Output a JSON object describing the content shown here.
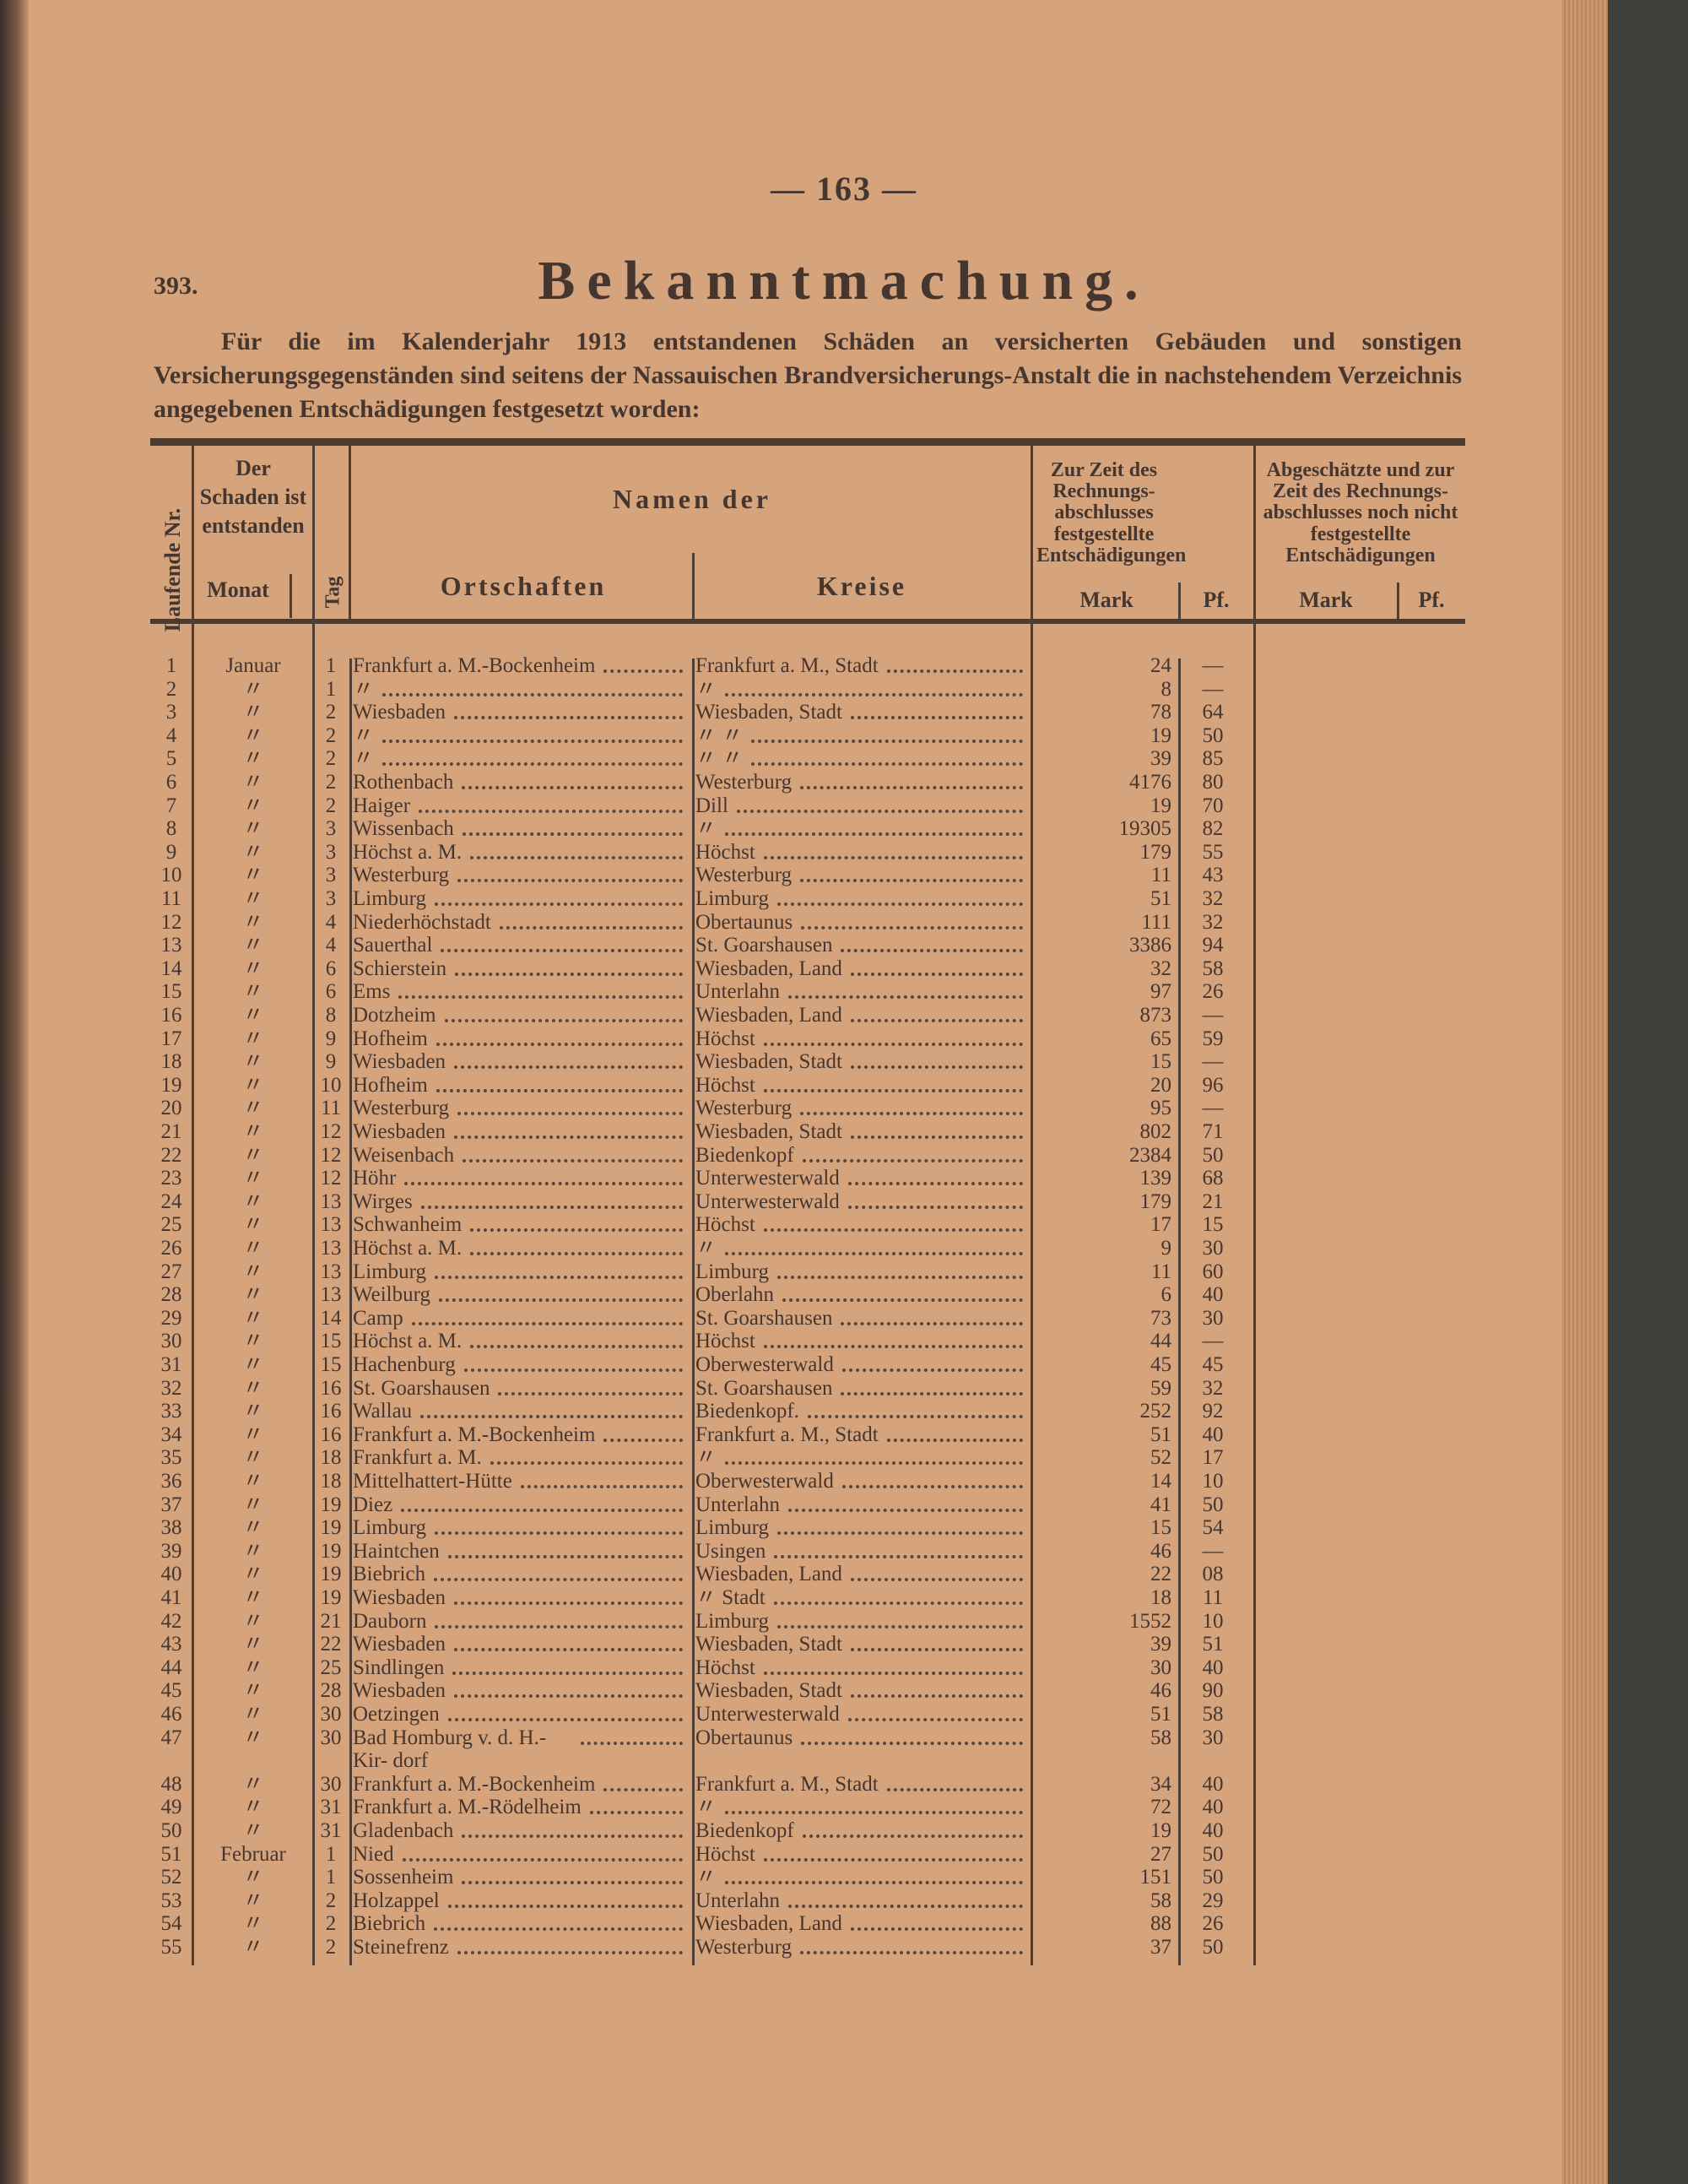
{
  "page_number": "— 163 —",
  "item_number": "393.",
  "title": "Bekanntmachung.",
  "intro": "Für die im Kalenderjahr 1913 entstandenen Schäden an versicherten Gebäuden und sonstigen Versicherungsgegenständen sind seitens der Nassauischen Brandversicherungs-Anstalt die in nachstehendem Verzeichnis angegebenen Entschädigungen festgesetzt worden:",
  "headers": {
    "nr": "Laufende Nr.",
    "schaden": "Der Schaden ist entstanden",
    "monat": "Monat",
    "tag": "Tag",
    "namen": "Namen der",
    "ortschaften": "Ortschaften",
    "kreise": "Kreise",
    "festgestellt": "Zur Zeit des Rechnungs-abschlusses festgestellte Entschädigungen",
    "nicht_festgestellt": "Abgeschätzte und zur Zeit des Rechnungs-abschlusses noch nicht festgestellte Entschädigungen",
    "mark": "Mark",
    "pf": "Pf."
  },
  "rows": [
    {
      "nr": "1",
      "monat": "Januar",
      "tag": "1",
      "ort": "Frankfurt a. M.-Bockenheim",
      "kreis": "Frankfurt a. M., Stadt",
      "mark": "24",
      "pf": "—"
    },
    {
      "nr": "2",
      "monat": "〃",
      "tag": "1",
      "ort": "〃",
      "kreis": "〃",
      "mark": "8",
      "pf": "—"
    },
    {
      "nr": "3",
      "monat": "〃",
      "tag": "2",
      "ort": "Wiesbaden",
      "kreis": "Wiesbaden, Stadt",
      "mark": "78",
      "pf": "64"
    },
    {
      "nr": "4",
      "monat": "〃",
      "tag": "2",
      "ort": "〃",
      "kreis": "〃   〃",
      "mark": "19",
      "pf": "50"
    },
    {
      "nr": "5",
      "monat": "〃",
      "tag": "2",
      "ort": "〃",
      "kreis": "〃   〃",
      "mark": "39",
      "pf": "85"
    },
    {
      "nr": "6",
      "monat": "〃",
      "tag": "2",
      "ort": "Rothenbach",
      "kreis": "Westerburg",
      "mark": "4176",
      "pf": "80"
    },
    {
      "nr": "7",
      "monat": "〃",
      "tag": "2",
      "ort": "Haiger",
      "kreis": "Dill",
      "mark": "19",
      "pf": "70"
    },
    {
      "nr": "8",
      "monat": "〃",
      "tag": "3",
      "ort": "Wissenbach",
      "kreis": "〃",
      "mark": "19305",
      "pf": "82"
    },
    {
      "nr": "9",
      "monat": "〃",
      "tag": "3",
      "ort": "Höchst a. M.",
      "kreis": "Höchst",
      "mark": "179",
      "pf": "55"
    },
    {
      "nr": "10",
      "monat": "〃",
      "tag": "3",
      "ort": "Westerburg",
      "kreis": "Westerburg",
      "mark": "11",
      "pf": "43"
    },
    {
      "nr": "11",
      "monat": "〃",
      "tag": "3",
      "ort": "Limburg",
      "kreis": "Limburg",
      "mark": "51",
      "pf": "32"
    },
    {
      "nr": "12",
      "monat": "〃",
      "tag": "4",
      "ort": "Niederhöchstadt",
      "kreis": "Obertaunus",
      "mark": "111",
      "pf": "32"
    },
    {
      "nr": "13",
      "monat": "〃",
      "tag": "4",
      "ort": "Sauerthal",
      "kreis": "St. Goarshausen",
      "mark": "3386",
      "pf": "94"
    },
    {
      "nr": "14",
      "monat": "〃",
      "tag": "6",
      "ort": "Schierstein",
      "kreis": "Wiesbaden, Land",
      "mark": "32",
      "pf": "58"
    },
    {
      "nr": "15",
      "monat": "〃",
      "tag": "6",
      "ort": "Ems",
      "kreis": "Unterlahn",
      "mark": "97",
      "pf": "26"
    },
    {
      "nr": "16",
      "monat": "〃",
      "tag": "8",
      "ort": "Dotzheim",
      "kreis": "Wiesbaden, Land",
      "mark": "873",
      "pf": "—"
    },
    {
      "nr": "17",
      "monat": "〃",
      "tag": "9",
      "ort": "Hofheim",
      "kreis": "Höchst",
      "mark": "65",
      "pf": "59"
    },
    {
      "nr": "18",
      "monat": "〃",
      "tag": "9",
      "ort": "Wiesbaden",
      "kreis": "Wiesbaden, Stadt",
      "mark": "15",
      "pf": "—"
    },
    {
      "nr": "19",
      "monat": "〃",
      "tag": "10",
      "ort": "Hofheim",
      "kreis": "Höchst",
      "mark": "20",
      "pf": "96"
    },
    {
      "nr": "20",
      "monat": "〃",
      "tag": "11",
      "ort": "Westerburg",
      "kreis": "Westerburg",
      "mark": "95",
      "pf": "—"
    },
    {
      "nr": "21",
      "monat": "〃",
      "tag": "12",
      "ort": "Wiesbaden",
      "kreis": "Wiesbaden, Stadt",
      "mark": "802",
      "pf": "71"
    },
    {
      "nr": "22",
      "monat": "〃",
      "tag": "12",
      "ort": "Weisenbach",
      "kreis": "Biedenkopf",
      "mark": "2384",
      "pf": "50"
    },
    {
      "nr": "23",
      "monat": "〃",
      "tag": "12",
      "ort": "Höhr",
      "kreis": "Unterwesterwald",
      "mark": "139",
      "pf": "68"
    },
    {
      "nr": "24",
      "monat": "〃",
      "tag": "13",
      "ort": "Wirges",
      "kreis": "Unterwesterwald",
      "mark": "179",
      "pf": "21"
    },
    {
      "nr": "25",
      "monat": "〃",
      "tag": "13",
      "ort": "Schwanheim",
      "kreis": "Höchst",
      "mark": "17",
      "pf": "15"
    },
    {
      "nr": "26",
      "monat": "〃",
      "tag": "13",
      "ort": "Höchst a. M.",
      "kreis": "〃",
      "mark": "9",
      "pf": "30"
    },
    {
      "nr": "27",
      "monat": "〃",
      "tag": "13",
      "ort": "Limburg",
      "kreis": "Limburg",
      "mark": "11",
      "pf": "60"
    },
    {
      "nr": "28",
      "monat": "〃",
      "tag": "13",
      "ort": "Weilburg",
      "kreis": "Oberlahn",
      "mark": "6",
      "pf": "40"
    },
    {
      "nr": "29",
      "monat": "〃",
      "tag": "14",
      "ort": "Camp",
      "kreis": "St. Goarshausen",
      "mark": "73",
      "pf": "30"
    },
    {
      "nr": "30",
      "monat": "〃",
      "tag": "15",
      "ort": "Höchst a. M.",
      "kreis": "Höchst",
      "mark": "44",
      "pf": "—"
    },
    {
      "nr": "31",
      "monat": "〃",
      "tag": "15",
      "ort": "Hachenburg",
      "kreis": "Oberwesterwald",
      "mark": "45",
      "pf": "45"
    },
    {
      "nr": "32",
      "monat": "〃",
      "tag": "16",
      "ort": "St. Goarshausen",
      "kreis": "St. Goarshausen",
      "mark": "59",
      "pf": "32"
    },
    {
      "nr": "33",
      "monat": "〃",
      "tag": "16",
      "ort": "Wallau",
      "kreis": "Biedenkopf.",
      "mark": "252",
      "pf": "92"
    },
    {
      "nr": "34",
      "monat": "〃",
      "tag": "16",
      "ort": "Frankfurt a. M.-Bockenheim",
      "kreis": "Frankfurt a. M., Stadt",
      "mark": "51",
      "pf": "40"
    },
    {
      "nr": "35",
      "monat": "〃",
      "tag": "18",
      "ort": "Frankfurt a. M.",
      "kreis": "〃",
      "mark": "52",
      "pf": "17"
    },
    {
      "nr": "36",
      "monat": "〃",
      "tag": "18",
      "ort": "Mittelhattert-Hütte",
      "kreis": "Oberwesterwald",
      "mark": "14",
      "pf": "10"
    },
    {
      "nr": "37",
      "monat": "〃",
      "tag": "19",
      "ort": "Diez",
      "kreis": "Unterlahn",
      "mark": "41",
      "pf": "50"
    },
    {
      "nr": "38",
      "monat": "〃",
      "tag": "19",
      "ort": "Limburg",
      "kreis": "Limburg",
      "mark": "15",
      "pf": "54"
    },
    {
      "nr": "39",
      "monat": "〃",
      "tag": "19",
      "ort": "Haintchen",
      "kreis": "Usingen",
      "mark": "46",
      "pf": "—"
    },
    {
      "nr": "40",
      "monat": "〃",
      "tag": "19",
      "ort": "Biebrich",
      "kreis": "Wiesbaden, Land",
      "mark": "22",
      "pf": "08"
    },
    {
      "nr": "41",
      "monat": "〃",
      "tag": "19",
      "ort": "Wiesbaden",
      "kreis": "〃   Stadt",
      "mark": "18",
      "pf": "11"
    },
    {
      "nr": "42",
      "monat": "〃",
      "tag": "21",
      "ort": "Dauborn",
      "kreis": "Limburg",
      "mark": "1552",
      "pf": "10"
    },
    {
      "nr": "43",
      "monat": "〃",
      "tag": "22",
      "ort": "Wiesbaden",
      "kreis": "Wiesbaden, Stadt",
      "mark": "39",
      "pf": "51"
    },
    {
      "nr": "44",
      "monat": "〃",
      "tag": "25",
      "ort": "Sindlingen",
      "kreis": "Höchst",
      "mark": "30",
      "pf": "40"
    },
    {
      "nr": "45",
      "monat": "〃",
      "tag": "28",
      "ort": "Wiesbaden",
      "kreis": "Wiesbaden, Stadt",
      "mark": "46",
      "pf": "90"
    },
    {
      "nr": "46",
      "monat": "〃",
      "tag": "30",
      "ort": "Oetzingen",
      "kreis": "Unterwesterwald",
      "mark": "51",
      "pf": "58"
    },
    {
      "nr": "47",
      "monat": "〃",
      "tag": "30",
      "ort": "Bad Homburg v. d. H.-Kir- dorf",
      "kreis": "Obertaunus",
      "mark": "58",
      "pf": "30"
    },
    {
      "nr": "48",
      "monat": "〃",
      "tag": "30",
      "ort": "Frankfurt a. M.-Bockenheim",
      "kreis": "Frankfurt a. M., Stadt",
      "mark": "34",
      "pf": "40"
    },
    {
      "nr": "49",
      "monat": "〃",
      "tag": "31",
      "ort": "Frankfurt a. M.-Rödelheim",
      "kreis": "〃",
      "mark": "72",
      "pf": "40"
    },
    {
      "nr": "50",
      "monat": "〃",
      "tag": "31",
      "ort": "Gladenbach",
      "kreis": "Biedenkopf",
      "mark": "19",
      "pf": "40"
    },
    {
      "nr": "51",
      "monat": "Februar",
      "tag": "1",
      "ort": "Nied",
      "kreis": "Höchst",
      "mark": "27",
      "pf": "50"
    },
    {
      "nr": "52",
      "monat": "〃",
      "tag": "1",
      "ort": "Sossenheim",
      "kreis": "〃",
      "mark": "151",
      "pf": "50"
    },
    {
      "nr": "53",
      "monat": "〃",
      "tag": "2",
      "ort": "Holzappel",
      "kreis": "Unterlahn",
      "mark": "58",
      "pf": "29"
    },
    {
      "nr": "54",
      "monat": "〃",
      "tag": "2",
      "ort": "Biebrich",
      "kreis": "Wiesbaden, Land",
      "mark": "88",
      "pf": "26"
    },
    {
      "nr": "55",
      "monat": "〃",
      "tag": "2",
      "ort": "Steinefrenz",
      "kreis": "Westerburg",
      "mark": "37",
      "pf": "50"
    }
  ]
}
